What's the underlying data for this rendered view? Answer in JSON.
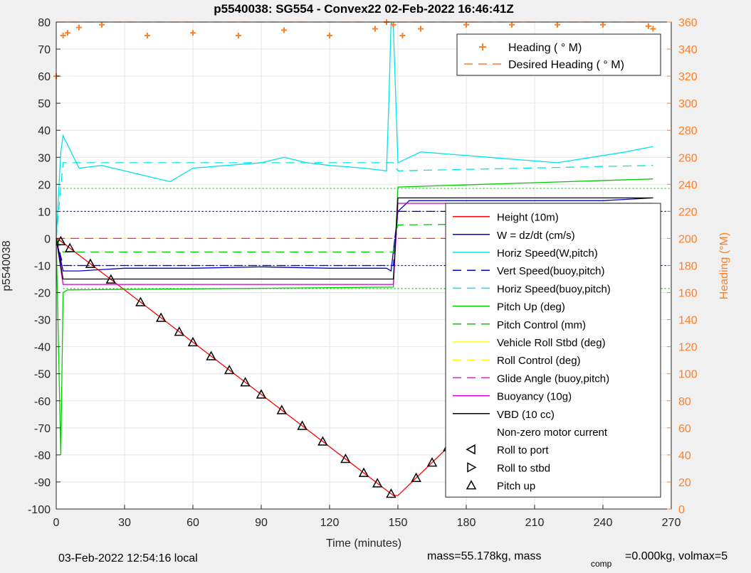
{
  "chart_data": {
    "type": "line",
    "title": "p5540038: SG554 - Convex22 02-Feb-2022 16:46:41Z",
    "xlabel": "Time (minutes)",
    "ylabel_left": "p5540038",
    "ylabel_right": "Heading (°M)",
    "xlim": [
      0,
      270
    ],
    "ylim_left": [
      -100,
      80
    ],
    "ylim_right": [
      0,
      360
    ],
    "xticks": [
      0,
      30,
      60,
      90,
      120,
      150,
      180,
      210,
      240,
      270
    ],
    "yticks_left": [
      80,
      70,
      60,
      50,
      40,
      30,
      20,
      10,
      0,
      -10,
      -20,
      -30,
      -40,
      -50,
      -60,
      -70,
      -80,
      -90,
      -100
    ],
    "yticks_right": [
      360,
      340,
      320,
      300,
      280,
      260,
      240,
      220,
      200,
      180,
      160,
      140,
      120,
      100,
      80,
      60,
      40,
      20,
      0
    ],
    "grid": true,
    "footer_left": "03-Feb-2022 12:54:16 local",
    "footer_right": "mass=55.178kg, mass",
    "footer_sub": "comp",
    "footer_tail": "=0.000kg, volmax=5",
    "legend_top": {
      "placement": "top-right",
      "entries": [
        {
          "label": "Heading (  ° M)",
          "color": "#ff7f27",
          "style": "plus"
        },
        {
          "label": "Desired Heading (   ° M)",
          "color": "#ff7f27",
          "style": "dash"
        }
      ]
    },
    "legend_bottom": {
      "placement": "lower-right",
      "entries": [
        {
          "label": "Height (10m)",
          "color": "#ff0000",
          "style": "solid"
        },
        {
          "label": "W = dz/dt (cm/s)",
          "color": "#0000cc",
          "style": "solid"
        },
        {
          "label": "Horiz Speed(W,pitch)",
          "color": "#00e5e5",
          "style": "solid"
        },
        {
          "label": "Vert Speed(buoy,pitch)",
          "color": "#0000cc",
          "style": "dash"
        },
        {
          "label": "Horiz Speed(buoy,pitch)",
          "color": "#00e5e5",
          "style": "dash"
        },
        {
          "label": "Pitch Up (deg)",
          "color": "#00cc00",
          "style": "solid"
        },
        {
          "label": "Pitch Control (mm)",
          "color": "#00cc00",
          "style": "dash"
        },
        {
          "label": "Vehicle Roll Stbd (deg)",
          "color": "#ffff00",
          "style": "solid"
        },
        {
          "label": "Roll Control (deg)",
          "color": "#ffff00",
          "style": "dash"
        },
        {
          "label": "Glide Angle (buoy,pitch)",
          "color": "#ff00ff",
          "style": "dash"
        },
        {
          "label": "Buoyancy (10g)",
          "color": "#cc00cc",
          "style": "solid"
        },
        {
          "label": "VBD (10 cc)",
          "color": "#000000",
          "style": "solid"
        },
        {
          "label": "Non-zero motor current",
          "color": "#000000",
          "style": "none"
        },
        {
          "label": "Roll to port",
          "color": "#000000",
          "style": "tri-left"
        },
        {
          "label": "Roll to stbd",
          "color": "#000000",
          "style": "tri-right"
        },
        {
          "label": "Pitch up",
          "color": "#000000",
          "style": "tri-up"
        }
      ]
    },
    "series": [
      {
        "name": "Height (10m)",
        "x": [
          0,
          2,
          148,
          150,
          262
        ],
        "y": [
          0,
          -1,
          -95,
          -95,
          -4
        ]
      },
      {
        "name": "W = dz/dt (cm/s)",
        "x": [
          0,
          3,
          10,
          30,
          60,
          90,
          120,
          145,
          147,
          150,
          155,
          180,
          210,
          240,
          262
        ],
        "y": [
          0,
          -12,
          -12,
          -11,
          -11,
          -10.5,
          -11,
          -11,
          -12,
          10,
          14,
          14,
          14,
          14,
          15
        ]
      },
      {
        "name": "Horiz Speed(W,pitch)",
        "x": [
          0,
          2,
          3,
          10,
          20,
          35,
          45,
          50,
          60,
          75,
          90,
          100,
          110,
          120,
          135,
          145,
          146,
          147,
          148,
          150,
          160,
          175,
          190,
          205,
          220,
          235,
          250,
          262
        ],
        "y": [
          0,
          32,
          38,
          26,
          27,
          24,
          22,
          21,
          26,
          27,
          28,
          30,
          28,
          27,
          26,
          25,
          50,
          80,
          78,
          28,
          32,
          31,
          30,
          29,
          28,
          30,
          32,
          34
        ]
      },
      {
        "name": "Vert Speed(buoy,pitch)",
        "x": [
          0,
          3,
          148,
          150,
          262
        ],
        "y": [
          0,
          -10,
          -10,
          10,
          10
        ]
      },
      {
        "name": "Horiz Speed(buoy,pitch)",
        "x": [
          0,
          3,
          148,
          150,
          262
        ],
        "y": [
          0,
          28,
          28,
          25,
          27
        ]
      },
      {
        "name": "Pitch Up (deg)",
        "x": [
          0,
          2,
          3,
          5,
          148,
          150,
          262
        ],
        "y": [
          0,
          -80,
          -20,
          -19,
          -18,
          19,
          22
        ]
      },
      {
        "name": "Pitch Control (mm)",
        "x": [
          0,
          3,
          148,
          150,
          262
        ],
        "y": [
          0,
          -5,
          -5,
          5,
          6
        ]
      },
      {
        "name": "Vehicle Roll Stbd (deg)",
        "x": [
          0,
          2,
          262
        ],
        "y": [
          0,
          0,
          0
        ]
      },
      {
        "name": "Roll Control (deg)",
        "x": [
          0,
          262
        ],
        "y": [
          0,
          0
        ]
      },
      {
        "name": "Glide Angle (buoy,pitch)",
        "x": [
          0,
          262
        ],
        "y": [
          0,
          0
        ]
      },
      {
        "name": "Buoyancy (10g)",
        "x": [
          0,
          3,
          148,
          150,
          262
        ],
        "y": [
          0,
          -17,
          -17,
          13,
          13
        ]
      },
      {
        "name": "VBD (10 cc)",
        "x": [
          0,
          3,
          148,
          150,
          262
        ],
        "y": [
          0,
          -15,
          -15,
          15,
          15
        ]
      },
      {
        "name": "Heading (  ° M)",
        "axis": "right",
        "x": [
          0,
          3,
          5,
          10,
          20,
          40,
          60,
          80,
          100,
          120,
          140,
          145,
          148,
          152,
          160,
          180,
          200,
          220,
          240,
          260,
          262
        ],
        "y": [
          320,
          350,
          352,
          356,
          358,
          350,
          352,
          350,
          354,
          350,
          355,
          360,
          358,
          350,
          355,
          358,
          358,
          358,
          358,
          357,
          355
        ]
      },
      {
        "name": "Desired Heading (   ° M)",
        "axis": "right",
        "x": [
          0,
          262
        ],
        "y": [
          360,
          360
        ]
      }
    ],
    "reference_lines": [
      {
        "y": 18.5,
        "color": "#00cc00",
        "style": "dotted"
      },
      {
        "y": 10,
        "color": "#0000cc",
        "style": "dotted"
      },
      {
        "y": -10,
        "color": "#0000cc",
        "style": "dotted"
      },
      {
        "y": -18.5,
        "color": "#00cc00",
        "style": "dotted"
      }
    ],
    "markers": {
      "pitch_up_x": [
        2,
        6,
        15,
        24,
        37,
        46,
        54,
        60,
        68,
        76,
        83,
        90,
        99,
        108,
        117,
        127,
        135,
        141,
        147,
        158,
        165,
        172,
        178,
        185,
        192,
        198,
        205,
        210,
        218,
        226,
        232,
        240,
        248,
        259
      ]
    }
  }
}
